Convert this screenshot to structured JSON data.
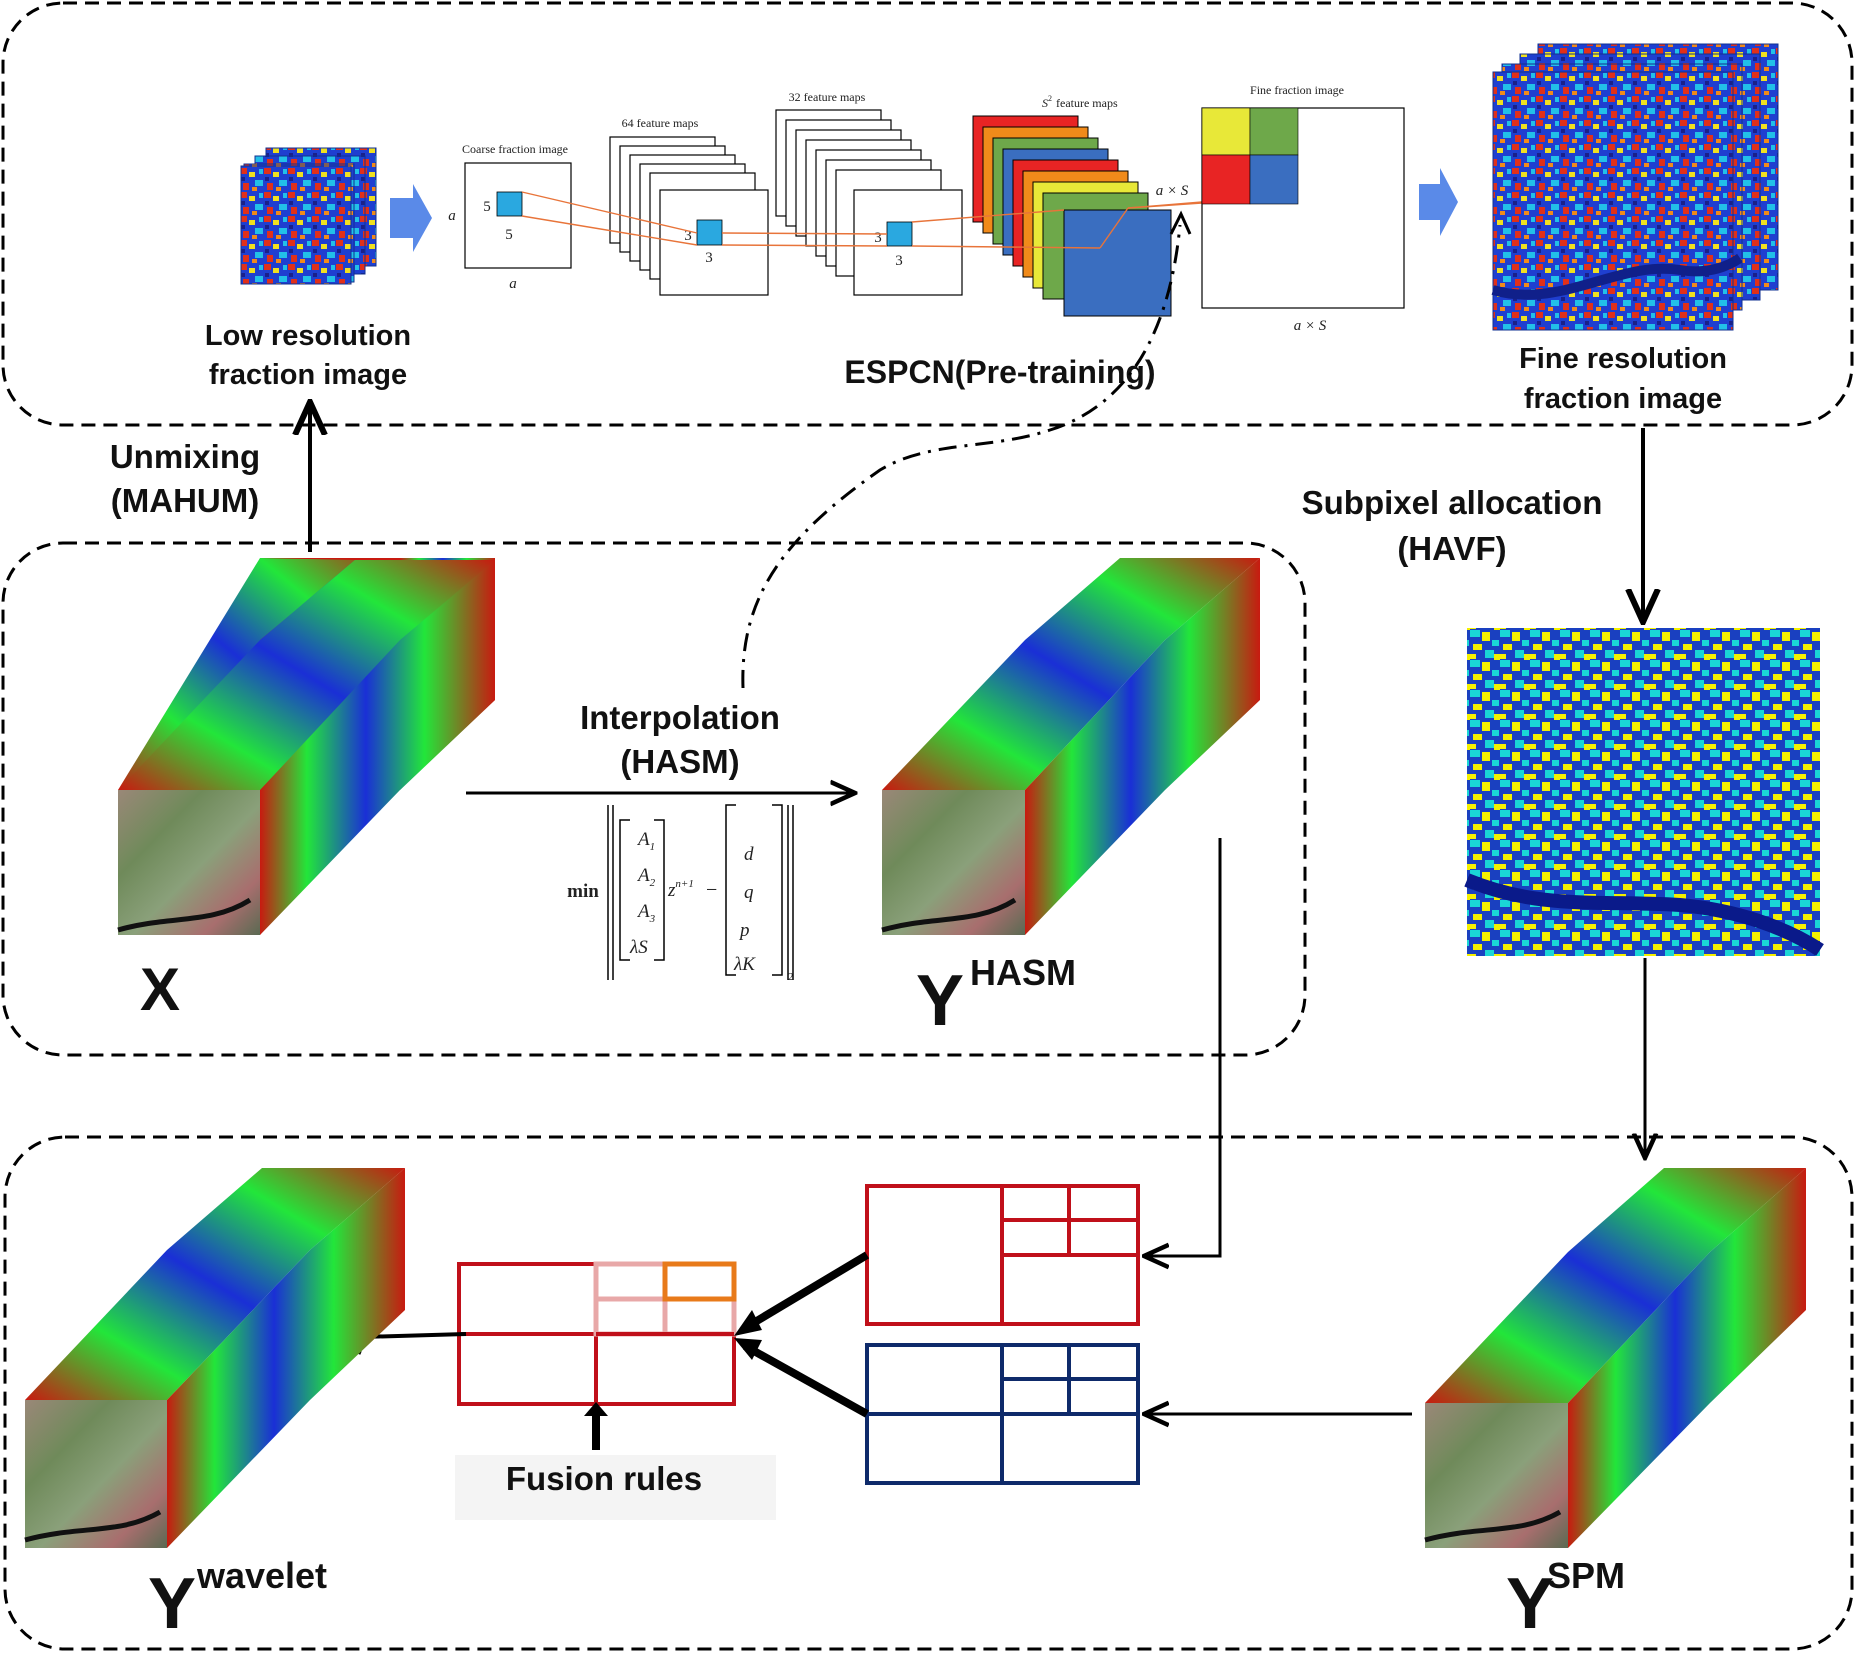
{
  "colors": {
    "hsi_red": "#c81a10",
    "hsi_green": "#22e63a",
    "hsi_blue": "#1a2fd6",
    "frac_blue": "#1f3fd0",
    "frac_red": "#e0301a",
    "frac_yellow": "#f0e020",
    "spm_yellow": "#f4f000",
    "spm_cyan": "#1ad6d6",
    "spm_blue": "#1a40c0",
    "grid_red": "#c0101a",
    "grid_navy": "#0e2a6a",
    "grid_orange": "#e87a1a",
    "grid_pink": "#e8a8a8",
    "arrow_blue": "#5a8ae8",
    "feat_red": "#e82424",
    "feat_orange": "#f08a1a",
    "feat_yellow": "#e8e838",
    "feat_green": "#6ea84a",
    "feat_blue": "#3a6ec0",
    "pixel_cyan": "#2aa8e0",
    "conn_orange": "#e8743a"
  },
  "espcn": {
    "low_res_label_1": "Low resolution",
    "low_res_label_2": "fraction image",
    "coarse_title": "Coarse fraction image",
    "coarse_side_a": "a",
    "coarse_bottom_a": "a",
    "k5_a": "5",
    "k5_b": "5",
    "fm64_title": "64 feature maps",
    "k3_a": "3",
    "k3_b": "3",
    "fm32_title": "32 feature maps",
    "k3_c": "3",
    "k3_d": "3",
    "s2_title": "feature maps",
    "s2_sym": "S",
    "s2_exp": "2",
    "axs_side": "a × S",
    "fine_title": "Fine fraction image",
    "axs_bottom": "a × S",
    "label": "ESPCN(Pre-training)",
    "fine_res_label_1": "Fine resolution",
    "fine_res_label_2": "fraction image"
  },
  "flow": {
    "unmixing_1": "Unmixing",
    "unmixing_2": "(MAHUM)",
    "subpixel_1": "Subpixel allocation",
    "subpixel_2": "(HAVF)",
    "interp_1": "Interpolation",
    "interp_2": "(HASM)",
    "fusion_rules": "Fusion rules"
  },
  "formula": {
    "min": "min",
    "a1": "A",
    "a1_sub": "1",
    "a2": "A",
    "a2_sub": "2",
    "a3": "A",
    "a3_sub": "3",
    "ls": "λS",
    "z": "z",
    "z_sup": "n+1",
    "minus": "−",
    "d": "d",
    "q": "q",
    "p": "p",
    "lk": "λK",
    "norm_sub": "2"
  },
  "symbols": {
    "x": "X",
    "y": "Y",
    "hasm": "HASM",
    "spm": "SPM",
    "wavelet": "wavelet"
  }
}
